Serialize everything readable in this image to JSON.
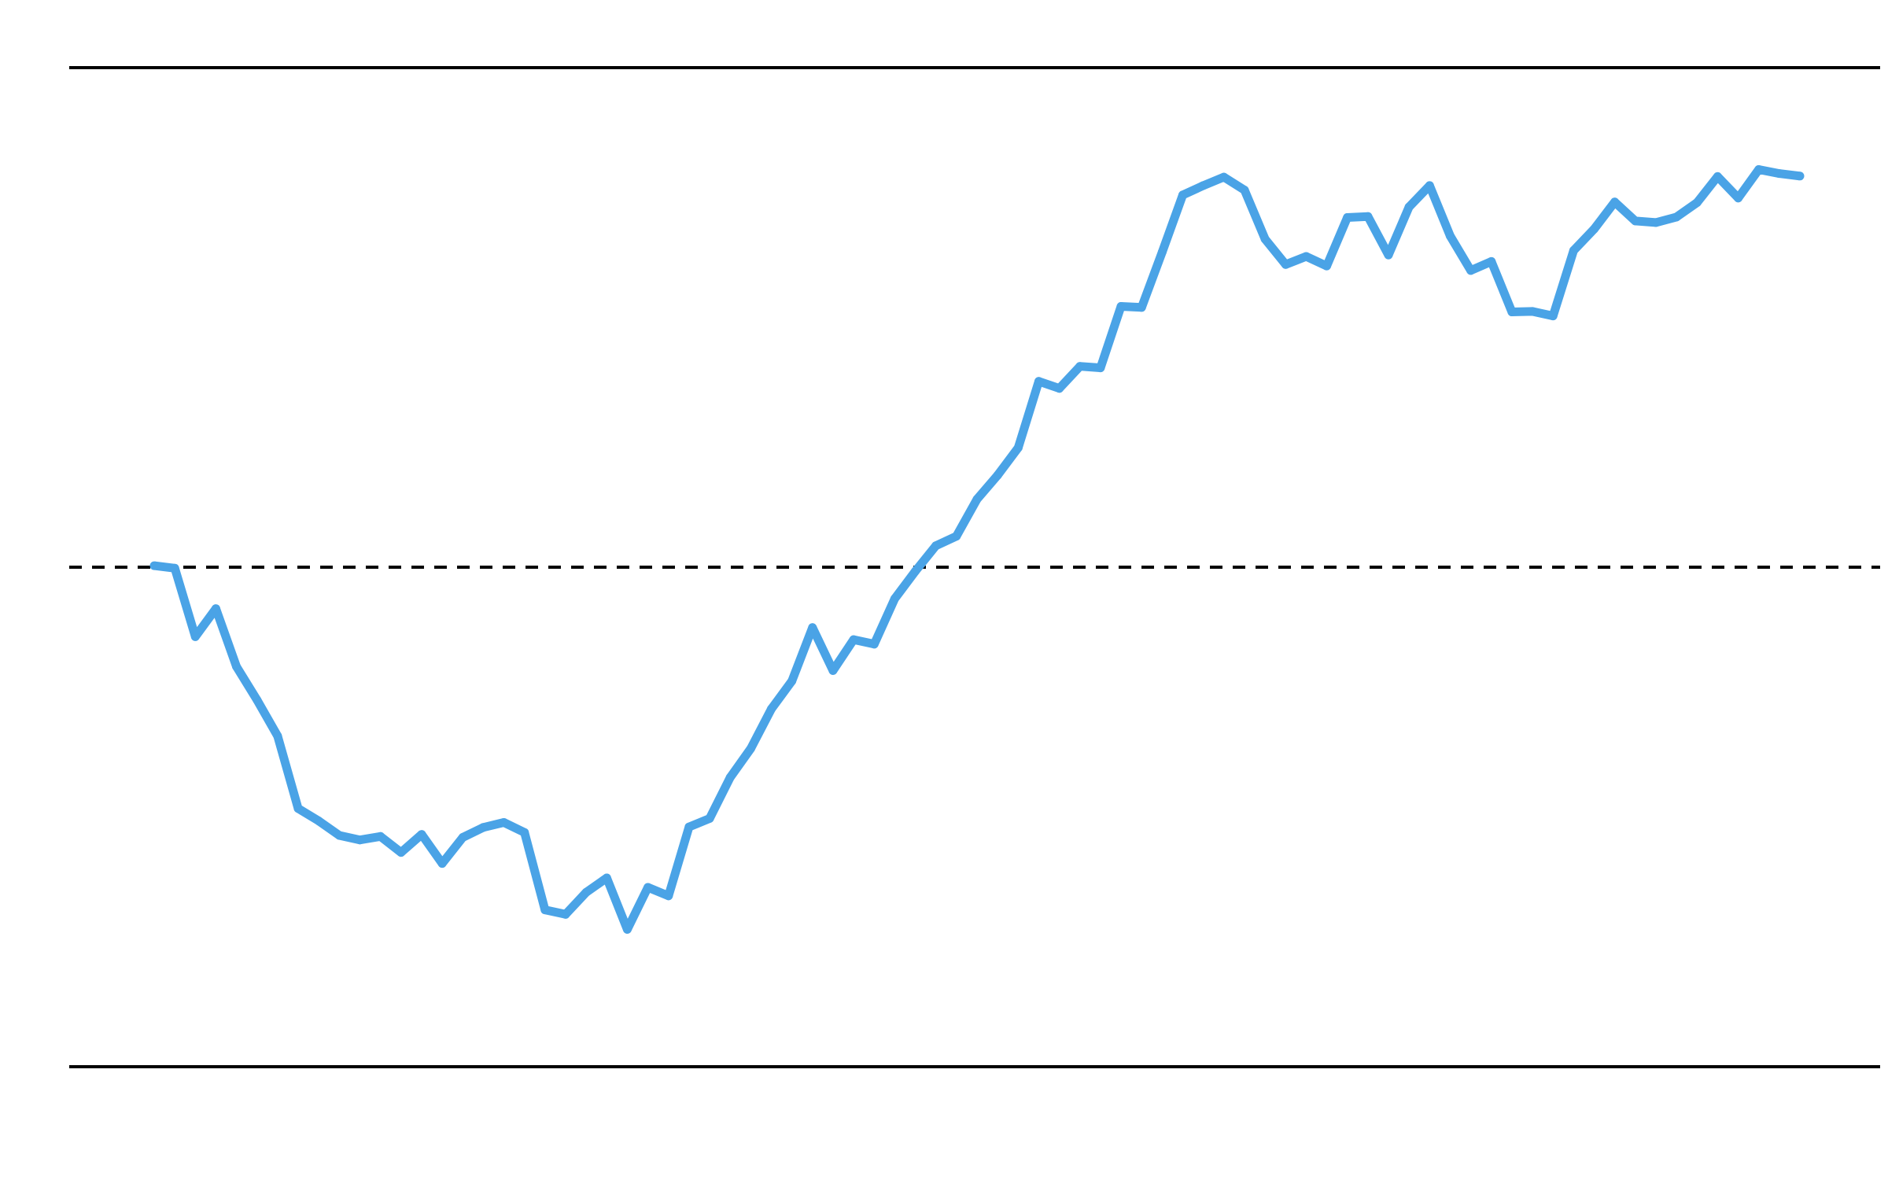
{
  "chart_data": {
    "type": "line",
    "x": [
      0,
      1,
      2,
      3,
      4,
      5,
      6,
      7,
      8,
      9,
      10,
      11,
      12,
      13,
      14,
      15,
      16,
      17,
      18,
      19,
      20,
      21,
      22,
      23,
      24,
      25,
      26,
      27,
      28,
      29,
      30,
      31,
      32,
      33,
      34,
      35,
      36,
      37,
      38,
      39,
      40,
      41,
      42,
      43,
      44,
      45,
      46,
      47,
      48,
      49,
      50,
      51,
      52,
      53,
      54,
      55,
      56,
      57,
      58,
      59,
      60,
      61,
      62,
      63,
      64,
      65,
      66,
      67,
      68,
      69,
      70,
      71,
      72,
      73,
      74,
      75,
      76,
      77,
      78,
      79,
      80
    ],
    "series": [
      {
        "color": "#4aa3e6",
        "values": [
          0.003,
          -0.002,
          -0.139,
          -0.083,
          -0.199,
          -0.266,
          -0.338,
          -0.483,
          -0.508,
          -0.537,
          -0.546,
          -0.539,
          -0.571,
          -0.535,
          -0.593,
          -0.541,
          -0.521,
          -0.511,
          -0.531,
          -0.686,
          -0.695,
          -0.651,
          -0.622,
          -0.725,
          -0.641,
          -0.658,
          -0.52,
          -0.503,
          -0.421,
          -0.363,
          -0.284,
          -0.228,
          -0.121,
          -0.207,
          -0.145,
          -0.154,
          -0.063,
          -0.008,
          0.043,
          0.062,
          0.136,
          0.184,
          0.239,
          0.372,
          0.358,
          0.402,
          0.399,
          0.522,
          0.52,
          0.631,
          0.745,
          0.764,
          0.781,
          0.755,
          0.657,
          0.606,
          0.622,
          0.603,
          0.7,
          0.702,
          0.625,
          0.721,
          0.764,
          0.663,
          0.594,
          0.612,
          0.511,
          0.512,
          0.503,
          0.634,
          0.677,
          0.731,
          0.693,
          0.69,
          0.701,
          0.73,
          0.782,
          0.739,
          0.796,
          0.788,
          0.783
        ]
      }
    ],
    "ylim": [
      -1,
      1
    ],
    "reference_y": 0,
    "boundaries": [
      -1,
      1
    ],
    "colors": {
      "series": "#4aa3e6",
      "reference": "#000000",
      "boundary": "#000000"
    },
    "grid": false,
    "legend": "none"
  }
}
